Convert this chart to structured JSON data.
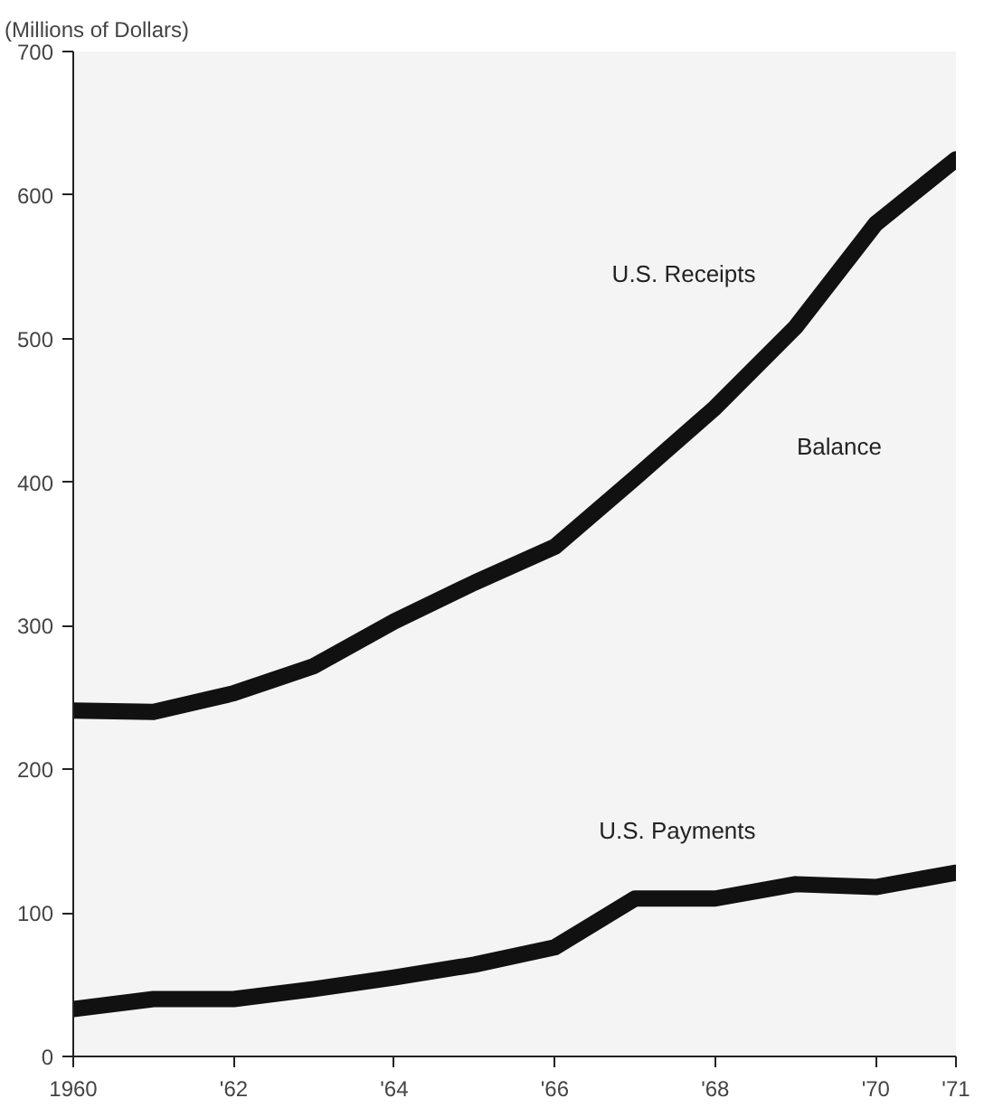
{
  "chart_data": {
    "type": "line",
    "ylabel": "(Millions of Dollars)",
    "x": [
      1960,
      1961,
      1962,
      1963,
      1964,
      1965,
      1966,
      1967,
      1968,
      1969,
      1970,
      1971
    ],
    "series": [
      {
        "name": "U.S. Receipts",
        "color": "#111111",
        "values": [
          241,
          240,
          253,
          272,
          303,
          330,
          355,
          403,
          452,
          508,
          580,
          625
        ]
      },
      {
        "name": "U.S. Payments",
        "color": "#111111",
        "values": [
          33,
          40,
          40,
          47,
          55,
          64,
          76,
          110,
          110,
          120,
          118,
          128
        ]
      }
    ],
    "xlim": [
      1960,
      1971
    ],
    "ylim": [
      0,
      700
    ],
    "xticks": [
      {
        "value": 1960,
        "label": "1960"
      },
      {
        "value": 1962,
        "label": "'62"
      },
      {
        "value": 1964,
        "label": "'64"
      },
      {
        "value": 1966,
        "label": "'66"
      },
      {
        "value": 1968,
        "label": "'68"
      },
      {
        "value": 1970,
        "label": "'70"
      },
      {
        "value": 1971,
        "label": "'71"
      }
    ],
    "yticks": [
      0,
      100,
      200,
      300,
      400,
      500,
      600,
      700
    ],
    "grid": false,
    "line_style": "solid",
    "marker": "none",
    "annotations": [
      "Balance"
    ]
  }
}
